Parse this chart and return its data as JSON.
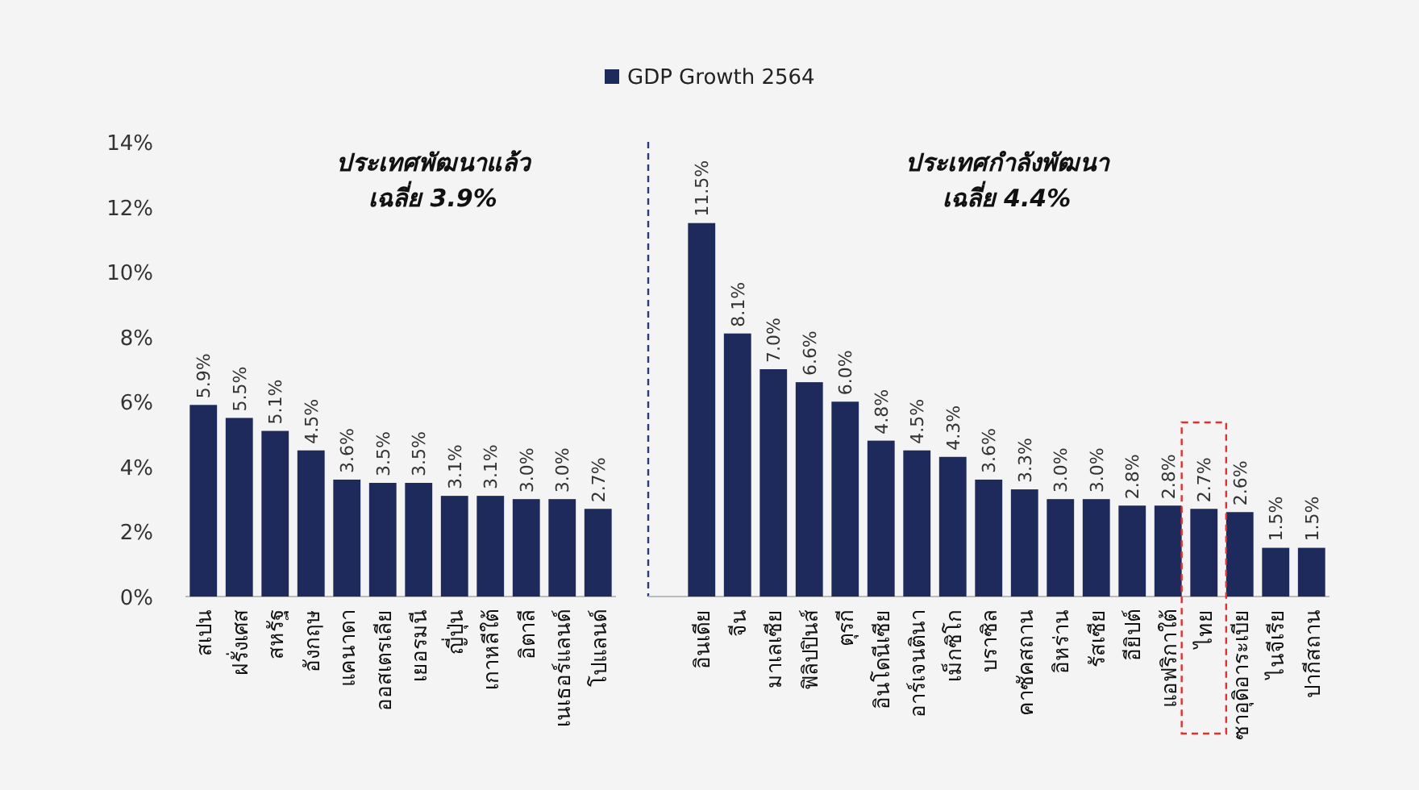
{
  "chart_data": [
    {
      "type": "bar",
      "categories": [
        "สเปน",
        "ฝรั่งเศส",
        "สหรัฐ",
        "อังกฤษ",
        "แคนาดา",
        "ออสเตรเลีย",
        "เยอรมนี",
        "ญี่ปุ่น",
        "เกาหลีใต้",
        "อิตาลี",
        "เนเธอร์แลนด์",
        "โปแลนด์"
      ],
      "series": [
        {
          "name": "GDP Growth 2564",
          "color": "#1f2a5c",
          "values": [
            5.9,
            5.5,
            5.1,
            4.5,
            3.6,
            3.5,
            3.5,
            3.1,
            3.1,
            3.0,
            3.0,
            2.7
          ],
          "value_labels": [
            "5.9%",
            "5.5%",
            "5.1%",
            "4.5%",
            "3.6%",
            "3.5%",
            "3.5%",
            "3.1%",
            "3.1%",
            "3.0%",
            "3.0%",
            "2.7%"
          ]
        }
      ],
      "ylim": [
        0,
        14
      ],
      "yticks": [
        {
          "value": 0,
          "label": "0%"
        },
        {
          "value": 2,
          "label": "2%"
        },
        {
          "value": 4,
          "label": "4%"
        },
        {
          "value": 6,
          "label": "6%"
        },
        {
          "value": 8,
          "label": "8%"
        },
        {
          "value": 10,
          "label": "10%"
        },
        {
          "value": 12,
          "label": "12%"
        },
        {
          "value": 14,
          "label": "14%"
        }
      ],
      "annotations": [
        "ประเทศพัฒนาแล้ว\nเฉลี่ย 3.9%"
      ],
      "legend": "top"
    },
    {
      "type": "bar",
      "categories": [
        "อินเดีย",
        "จีน",
        "มาเลเซีย",
        "ฟิลิปปินส์",
        "ตุรกี",
        "อินโดนีเซีย",
        "อาร์เจนตินา",
        "เม็กซิโก",
        "บราซิล",
        "คาซัคสถาน",
        "อิหร่าน",
        "รัสเซีย",
        "อียิปต์",
        "แอฟริกาใต้",
        "ไทย",
        "ซาอุดิอาระเบีย",
        "ไนจีเรีย",
        "ปากีสถาน"
      ],
      "series": [
        {
          "color": "#1f2a5c",
          "values": [
            11.5,
            8.1,
            7.0,
            6.6,
            6.0,
            4.8,
            4.5,
            4.3,
            3.6,
            3.3,
            3.0,
            3.0,
            2.8,
            2.8,
            2.7,
            2.6,
            1.5,
            1.5
          ],
          "value_labels": [
            "11.5%",
            "8.1%",
            "7.0%",
            "6.6%",
            "6.0%",
            "4.8%",
            "4.5%",
            "4.3%",
            "3.6%",
            "3.3%",
            "3.0%",
            "3.0%",
            "2.8%",
            "2.8%",
            "2.7%",
            "2.6%",
            "1.5%",
            "1.5%"
          ]
        }
      ],
      "ylim": [
        0,
        14
      ],
      "tick_labels": "x",
      "annotations": [
        "ประเทศกำลังพัฒนา\nเฉลี่ย 4.4%"
      ]
    }
  ]
}
